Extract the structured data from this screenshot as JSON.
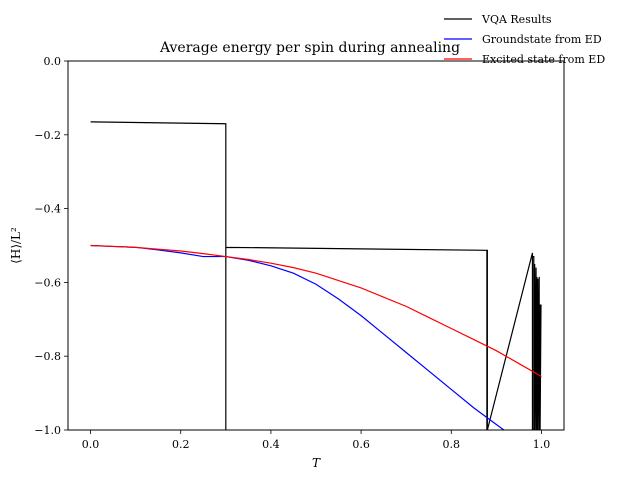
{
  "chart_data": {
    "type": "line",
    "title": "Average energy per spin during annealing",
    "xlabel": "T",
    "ylabel": "⟨H⟩/L²",
    "xlim": [
      -0.05,
      1.05
    ],
    "ylim": [
      -1.0,
      0.0
    ],
    "x_ticks": [
      0.0,
      0.2,
      0.4,
      0.6,
      0.8,
      1.0
    ],
    "x_tick_labels": [
      "0.0",
      "0.2",
      "0.4",
      "0.6",
      "0.8",
      "1.0"
    ],
    "y_ticks": [
      -1.0,
      -0.8,
      -0.6,
      -0.4,
      -0.2,
      0.0
    ],
    "y_tick_labels": [
      "−1.0",
      "−0.8",
      "−0.6",
      "−0.4",
      "−0.2",
      "0.0"
    ],
    "grid": false,
    "legend_position": "top-right",
    "series": [
      {
        "name": "VQA Results",
        "color": "#000000",
        "x": [
          0.0,
          0.3,
          0.3,
          0.3,
          0.879,
          0.879,
          0.879,
          0.88,
          0.88,
          0.98,
          0.98,
          0.98,
          0.983,
          0.983,
          0.985,
          0.985,
          0.988,
          0.988,
          0.99,
          0.99,
          0.992,
          0.992,
          0.995,
          0.995,
          0.997,
          0.997,
          0.999
        ],
        "y": [
          -0.165,
          -0.17,
          -1.0,
          -0.505,
          -0.513,
          -1.0,
          -0.513,
          -0.513,
          -1.0,
          -0.52,
          -1.0,
          -0.53,
          -0.53,
          -1.0,
          -0.55,
          -1.0,
          -0.56,
          -1.0,
          -0.585,
          -1.0,
          -0.59,
          -1.0,
          -0.585,
          -1.0,
          -0.66,
          -1.0,
          -0.66
        ]
      },
      {
        "name": "Groundstate from ED",
        "color": "#0000ff",
        "x": [
          0.0,
          0.05,
          0.1,
          0.15,
          0.2,
          0.25,
          0.3,
          0.35,
          0.4,
          0.45,
          0.5,
          0.55,
          0.6,
          0.65,
          0.7,
          0.75,
          0.8,
          0.85,
          0.9,
          0.95,
          0.99
        ],
        "y": [
          -0.5,
          -0.5025,
          -0.505,
          -0.512,
          -0.52,
          -0.53,
          -0.53,
          -0.54,
          -0.555,
          -0.575,
          -0.605,
          -0.645,
          -0.69,
          -0.74,
          -0.79,
          -0.84,
          -0.89,
          -0.94,
          -0.985,
          -1.03,
          -1.07
        ]
      },
      {
        "name": "Excited state from ED",
        "color": "#ff0000",
        "x": [
          0.0,
          0.05,
          0.1,
          0.15,
          0.2,
          0.25,
          0.3,
          0.35,
          0.4,
          0.45,
          0.5,
          0.55,
          0.6,
          0.65,
          0.7,
          0.75,
          0.8,
          0.85,
          0.9,
          0.95,
          1.0
        ],
        "y": [
          -0.5,
          -0.5025,
          -0.505,
          -0.51,
          -0.515,
          -0.522,
          -0.53,
          -0.538,
          -0.548,
          -0.56,
          -0.575,
          -0.595,
          -0.615,
          -0.64,
          -0.665,
          -0.695,
          -0.725,
          -0.755,
          -0.785,
          -0.82,
          -0.855
        ]
      }
    ]
  }
}
